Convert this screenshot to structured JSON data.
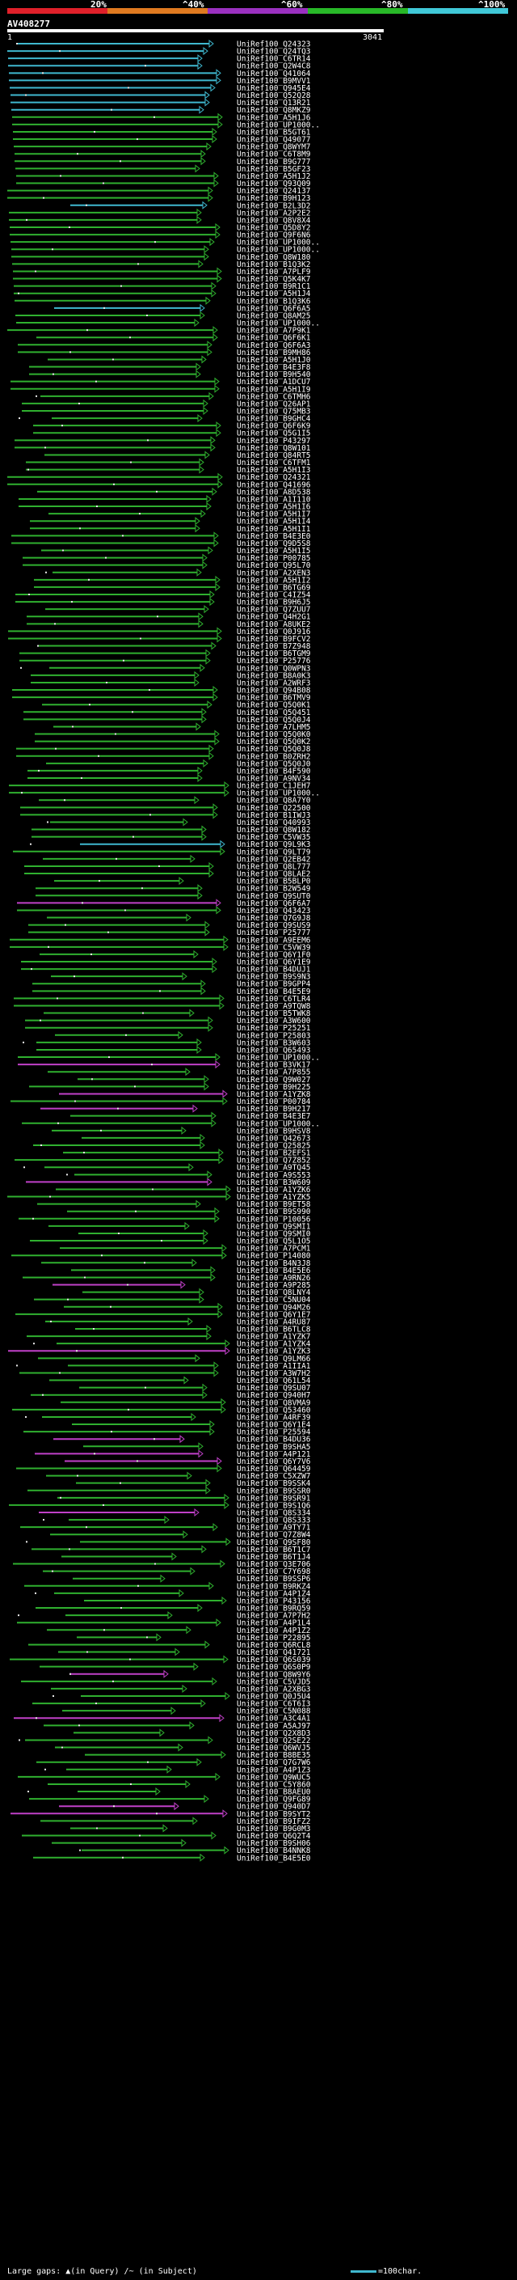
{
  "scale": {
    "labels": [
      "20%",
      "^40%",
      "^60%",
      "^80%",
      "^100%"
    ],
    "colors": [
      "#e0202a",
      "#e07a20",
      "#9a30c0",
      "#28b828",
      "#40c8d8"
    ]
  },
  "query": {
    "name": "AV408277",
    "start": "1",
    "end": "3041"
  },
  "colors": {
    "cyan": "#3fb8cf",
    "green": "#2fb02f",
    "magenta": "#c040c8",
    "black": "#000000",
    "marker": "#e8e8e8"
  },
  "hits": [
    "UniRef100_Q24323",
    "UniRef100_Q24TQ3",
    "UniRef100_C6TR14",
    "UniRef100_Q2W4C8",
    "UniRef100_Q41064",
    "UniRef100_B9MVV1",
    "UniRef100_Q945E4",
    "UniRef100_Q52Q28",
    "UniRef100_Q13R21",
    "UniRef100_Q8MKZ9",
    "UniRef100_A5H1J6",
    "UniRef100_UP1000..",
    "UniRef100_B5GT61",
    "UniRef100_Q49077",
    "UniRef100_Q8WYM7",
    "UniRef100_C6T8M9",
    "UniRef100_B9G777",
    "UniRef100_B5GF23",
    "UniRef100_A5H1J2",
    "UniRef100_Q93Q09",
    "UniRef100_Q24137",
    "UniRef100_B9H123",
    "UniRef100_B2L3D2",
    "UniRef100_A2P2E2",
    "UniRef100_Q8V8X4",
    "UniRef100_Q5D8Y2",
    "UniRef100_Q9F6N6",
    "UniRef100_UP1000..",
    "UniRef100_UP1000..",
    "UniRef100_Q8W180",
    "UniRef100_B1Q3K2",
    "UniRef100_A7PLF9",
    "UniRef100_Q5K4K7",
    "UniRef100_B9R1C1",
    "UniRef100_A5H1J4",
    "UniRef100_B1Q3K6",
    "UniRef100_Q6F6A5",
    "UniRef100_Q8AM25",
    "UniRef100_UP1000..",
    "UniRef100_A7P9K1",
    "UniRef100_Q6F6K1",
    "UniRef100_Q6F6A3",
    "UniRef100_B9MH86",
    "UniRef100_A5H1J0",
    "UniRef100_B4E3F8",
    "UniRef100_B9H540",
    "UniRef100_A1DCU7",
    "UniRef100_A5H1I9",
    "UniRef100_C6TMH6",
    "UniRef100_Q26AP1",
    "UniRef100_Q75MB3",
    "UniRef100_B9GHC4",
    "UniRef100_Q6F6K9",
    "UniRef100_Q5G1I5",
    "UniRef100_P43297",
    "UniRef100_Q8W101",
    "UniRef100_Q84RT5",
    "UniRef100_C6TFM1",
    "UniRef100_A5H1I3",
    "UniRef100_Q24321",
    "UniRef100_Q41696",
    "UniRef100_A8D538",
    "UniRef100_A1I110",
    "UniRef100_A5H1I6",
    "UniRef100_A5H1I7",
    "UniRef100_A5H1I4",
    "UniRef100_A5H1I1",
    "UniRef100_B4E3E0",
    "UniRef100_Q9D5S8",
    "UniRef100_A5H1I5",
    "UniRef100_P00785",
    "UniRef100_Q95L70",
    "UniRef100_A2XEN3",
    "UniRef100_A5H1I2",
    "UniRef100_B6TG69",
    "UniRef100_C4IZ54",
    "UniRef100_B9H6J5",
    "UniRef100_Q7ZUU7",
    "UniRef100_Q4H2G1",
    "UniRef100_A8UKE2",
    "UniRef100_Q0J916",
    "UniRef100_B9FCV2",
    "UniRef100_B7Z948",
    "UniRef100_B6TGM9",
    "UniRef100_P25776",
    "UniRef100_Q0WPN3",
    "UniRef100_B8A0K3",
    "UniRef100_A2WRF3",
    "UniRef100_Q94B08",
    "UniRef100_B6TMV9",
    "UniRef100_Q5Q0K1",
    "UniRef100_Q5Q451",
    "UniRef100_Q5Q0J4",
    "UniRef100_A7LHM5",
    "UniRef100_Q5Q0K0",
    "UniRef100_Q5Q0K2",
    "UniRef100_Q5Q0J8",
    "UniRef100_B0ZRH2",
    "UniRef100_Q5Q0J0",
    "UniRef100_B4F590",
    "UniRef100_A9NV34",
    "UniRef100_C1JEH7",
    "UniRef100_UP1000..",
    "UniRef100_Q8A7Y0",
    "UniRef100_Q22500",
    "UniRef100_B1IWJ3",
    "UniRef100_Q40993",
    "UniRef100_Q8W182",
    "UniRef100_C5VW35",
    "UniRef100_Q9L9K3",
    "UniRef100_Q9LT79",
    "UniRef100_Q2EB42",
    "UniRef100_Q8L777",
    "UniRef100_Q8LAE2",
    "UniRef100_B5BLP0",
    "UniRef100_B2W549",
    "UniRef100_Q9SUT0",
    "UniRef100_Q6F6A7",
    "UniRef100_Q43423",
    "UniRef100_Q7G9J8",
    "UniRef100_Q9SUS9",
    "UniRef100_P25777",
    "UniRef100_A9EEM6",
    "UniRef100_C5VW39",
    "UniRef100_Q6Y1F0",
    "UniRef100_Q6Y1E9",
    "UniRef100_B4DUJ1",
    "UniRef100_B9S9N3",
    "UniRef100_B9GPP4",
    "UniRef100_B4E5E9",
    "UniRef100_C6TLR4",
    "UniRef100_A9TQW8",
    "UniRef100_B5TWK8",
    "UniRef100_A3W600",
    "UniRef100_P25251",
    "UniRef100_P25803",
    "UniRef100_B3W603",
    "UniRef100_Q65493",
    "UniRef100_UP1000..",
    "UniRef100_B3VK17",
    "UniRef100_A7P855",
    "UniRef100_Q9W027",
    "UniRef100_B9H225",
    "UniRef100_A1YZK8",
    "UniRef100_P00784",
    "UniRef100_B9H217",
    "UniRef100_B4E3E7",
    "UniRef100_UP1000..",
    "UniRef100_B9HSV8",
    "UniRef100_Q42673",
    "UniRef100_Q25825",
    "UniRef100_B2EFS1",
    "UniRef100_Q7Z852",
    "UniRef100_A9TQ45",
    "UniRef100_A9S553",
    "UniRef100_B3W609",
    "UniRef100_A1YZK6",
    "UniRef100_A1YZK5",
    "UniRef100_B9ET58",
    "UniRef100_B9S990",
    "UniRef100_P10056",
    "UniRef100_Q9SMI1",
    "UniRef100_Q9SMI0",
    "UniRef100_Q5L1O5",
    "UniRef100_A7PCM1",
    "UniRef100_P14080",
    "UniRef100_B4N3J8",
    "UniRef100_B4E5E6",
    "UniRef100_A9RN26",
    "UniRef100_A9P285",
    "UniRef100_Q8LNY4",
    "UniRef100_C5NU04",
    "UniRef100_Q94M26",
    "UniRef100_Q6Y1E7",
    "UniRef100_A4RU87",
    "UniRef100_B6TLC8",
    "UniRef100_A1YZK7",
    "UniRef100_A1YZK4",
    "UniRef100_A1YZK3",
    "UniRef100_Q9LM66",
    "UniRef100_A1IIA1",
    "UniRef100_A3W7H2",
    "UniRef100_Q61L54",
    "UniRef100_Q9SU07",
    "UniRef100_Q940H7",
    "UniRef100_Q8VMA9",
    "UniRef100_Q53460",
    "UniRef100_A4RF39",
    "UniRef100_Q6Y1E4",
    "UniRef100_P25594",
    "UniRef100_B4DU36",
    "UniRef100_B9SHA5",
    "UniRef100_A4P121",
    "UniRef100_Q6Y7V6",
    "UniRef100_Q64459",
    "UniRef100_C5XZW7",
    "UniRef100_B9SSK4",
    "UniRef100_B9SSR0",
    "UniRef100_B9SR91",
    "UniRef100_B9S1Q6",
    "UniRef100_Q8S334",
    "UniRef100_Q8S333",
    "UniRef100_A9TY71",
    "UniRef100_Q7Z8W4",
    "UniRef100_Q9SF80",
    "UniRef100_B6T1C7",
    "UniRef100_B6T1J4",
    "UniRef100_Q3E706",
    "UniRef100_C7Y698",
    "UniRef100_B9SSP6",
    "UniRef100_B9RKZ4",
    "UniRef100_A4P1Z4",
    "UniRef100_P43156",
    "UniRef100_B9RQ59",
    "UniRef100_A7P7H2",
    "UniRef100_A4P1L4",
    "UniRef100_A4P1Z2",
    "UniRef100_P22895",
    "UniRef100_Q6RCL8",
    "UniRef100_Q41721",
    "UniRef100_Q6S039",
    "UniRef100_Q6S0P9",
    "UniRef100_Q8W9Y6",
    "UniRef100_C5VJD5",
    "UniRef100_A2XBG3",
    "UniRef100_Q0J5U4",
    "UniRef100_C6T6I3",
    "UniRef100_C5N088",
    "UniRef100_A3C4A1",
    "UniRef100_A5AJ97",
    "UniRef100_Q2X8D3",
    "UniRef100_Q2SE22",
    "UniRef100_Q6WVJ5",
    "UniRef100_B8BE35",
    "UniRef100_Q7G7W6",
    "UniRef100_A4P1Z3",
    "UniRef100_Q9WUC5",
    "UniRef100_C5Y860",
    "UniRef100_B8AEU0",
    "UniRef100_Q9FG89",
    "UniRef100_Q940D7",
    "UniRef100_B9SYT2",
    "UniRef100_B9IFZ2",
    "UniRef100_B9G0M3",
    "UniRef100_Q6Q2T4",
    "UniRef100_B9SH06",
    "UniRef100_B4NNK8",
    "UniRef100_B4E5E0"
  ],
  "footer": {
    "gaps_label": "Large gaps:",
    "query_gap": "(in Query)",
    "subject_gap": "/~ (in Subject)",
    "legend": "=100char."
  }
}
